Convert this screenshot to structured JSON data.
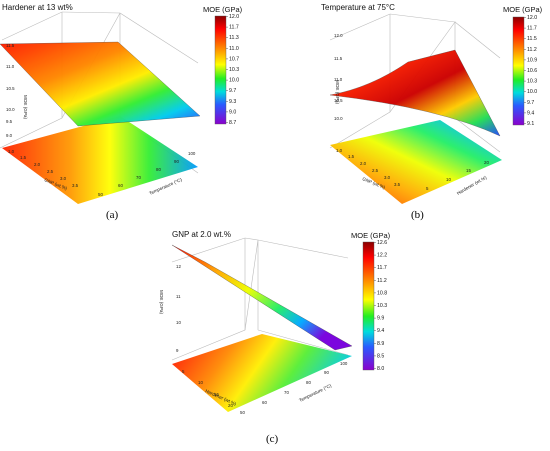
{
  "chart_data": [
    {
      "type": "surface3d",
      "panel_label": "(a)",
      "title": "Hardener at 13 wt%",
      "colorbar_title": "MOE (GPa)",
      "colorbar_ticks": [
        12.0,
        11.7,
        11.3,
        11.0,
        10.7,
        10.3,
        10.0,
        9.7,
        9.3,
        9.0,
        8.7
      ],
      "z_label": "MOE (GPa)",
      "z_ticks": [
        9.0,
        9.5,
        10.0,
        10.5,
        11.0,
        11.5
      ],
      "x_label": "GNP (wt.%)",
      "x_ticks": [
        1.0,
        1.5,
        2.0,
        2.5,
        3.0,
        3.5
      ],
      "y_label": "Temperature (°C)",
      "y_ticks": [
        50,
        60,
        70,
        80,
        90,
        100
      ],
      "z_range": [
        8.7,
        12.0
      ]
    },
    {
      "type": "surface3d",
      "panel_label": "(b)",
      "title": "Temperature at 75°C",
      "colorbar_title": "MOE (GPa)",
      "colorbar_ticks": [
        12.0,
        11.7,
        11.5,
        11.2,
        10.9,
        10.6,
        10.3,
        10.0,
        9.7,
        9.4,
        9.1
      ],
      "z_label": "MOE (GPa)",
      "z_ticks": [
        10.0,
        10.5,
        11.0,
        11.5,
        12.0
      ],
      "x_label": "GNP (wt.%)",
      "x_ticks": [
        1.0,
        1.5,
        2.0,
        2.5,
        3.0,
        3.5
      ],
      "y_label": "Hardener (wt.%)",
      "y_ticks": [
        5,
        10,
        15,
        20
      ],
      "z_range": [
        9.1,
        12.0
      ]
    },
    {
      "type": "surface3d",
      "panel_label": "(c)",
      "title": "GNP at 2.0 wt.%",
      "colorbar_title": "MOE (GPa)",
      "colorbar_ticks": [
        12.6,
        12.2,
        11.7,
        11.2,
        10.8,
        10.3,
        9.9,
        9.4,
        8.9,
        8.5,
        8.0
      ],
      "z_label": "MOE (GPa)",
      "z_ticks": [
        9,
        10,
        11,
        12
      ],
      "x_label": "Hardener (wt.%)",
      "x_ticks": [
        5,
        10,
        15,
        20
      ],
      "y_label": "Temperature (°C)",
      "y_ticks": [
        50,
        60,
        70,
        80,
        90,
        100
      ],
      "z_range": [
        8.0,
        12.6
      ]
    }
  ]
}
